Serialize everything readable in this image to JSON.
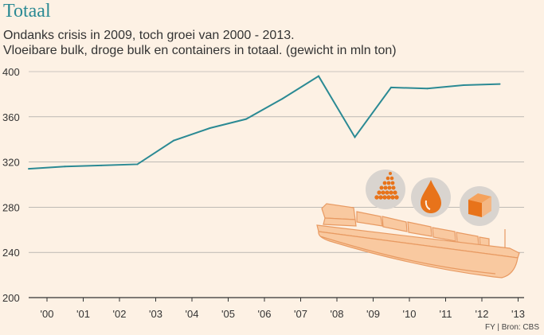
{
  "title": "Totaal",
  "subtitle_line1": "Ondanks crisis in 2009, toch groei van 2000 - 2013.",
  "subtitle_line2": "Vloeibare bulk, droge bulk en containers in totaal. (gewicht in mln ton)",
  "source": "FY | Bron: CBS",
  "colors": {
    "line": "#2b8a94",
    "background": "#fdf1e4",
    "ship": "#f9c9a0",
    "ship_stroke": "#e89a62",
    "icon_circle": "#d9d4cf",
    "icon_orange": "#e8731a"
  },
  "icons": [
    "dry-bulk-pile-icon",
    "liquid-drop-icon",
    "container-box-icon",
    "cargo-ship-illustration"
  ],
  "chart_data": {
    "type": "line",
    "title": "Totaal",
    "xlabel": "",
    "ylabel": "",
    "x": [
      2000,
      2001,
      2002,
      2003,
      2004,
      2005,
      2006,
      2007,
      2008,
      2009,
      2010,
      2011,
      2012,
      2013
    ],
    "x_tick_labels": [
      "'00",
      "'01",
      "'02",
      "'03",
      "'04",
      "'05",
      "'06",
      "'07",
      "'08",
      "'09",
      "'10",
      "'11",
      "'12",
      "'13"
    ],
    "y_ticks": [
      200,
      240,
      280,
      320,
      360,
      400
    ],
    "ylim": [
      200,
      400
    ],
    "grid": true,
    "series": [
      {
        "values": [
          314,
          316,
          317,
          318,
          339,
          350,
          358,
          376,
          396,
          342,
          386,
          385,
          388,
          389
        ]
      }
    ]
  }
}
